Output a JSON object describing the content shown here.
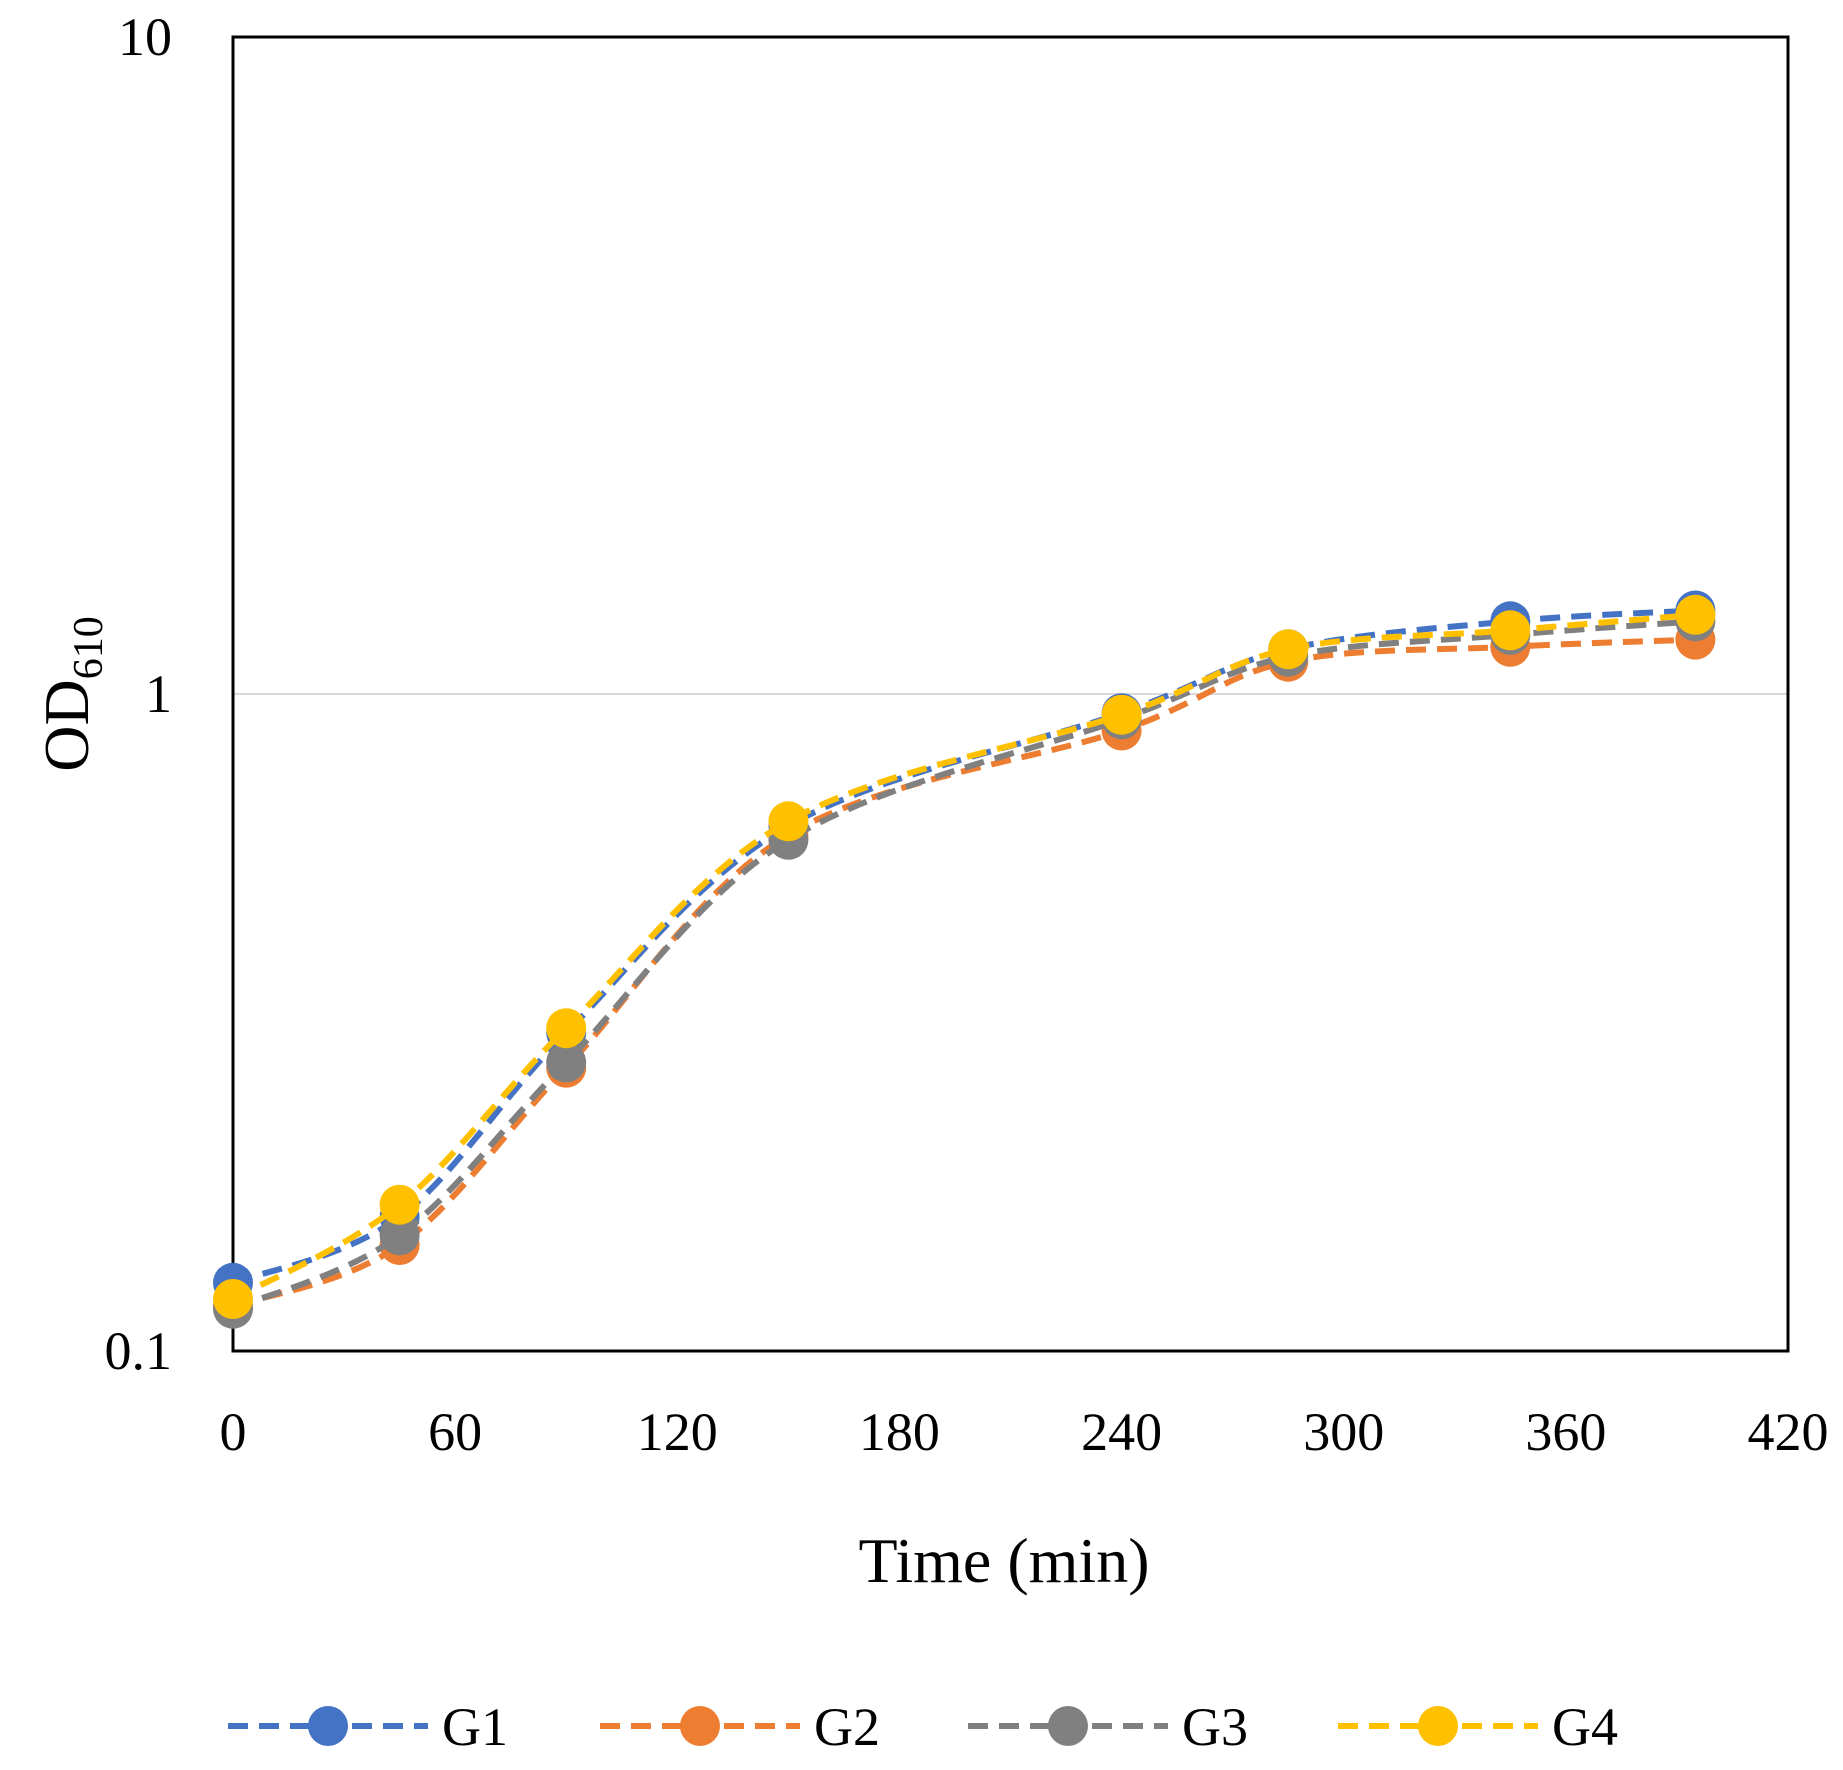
{
  "chart_data": {
    "type": "line",
    "title": "",
    "xlabel": "Time (min)",
    "ylabel": "OD",
    "ylabel_subscript": "610",
    "xlim": [
      0,
      420
    ],
    "ylim": [
      0.1,
      10
    ],
    "yscale": "log",
    "x_ticks": [
      0,
      60,
      120,
      180,
      240,
      300,
      360,
      420
    ],
    "x_tick_labels": [
      "0",
      "60",
      "120",
      "180",
      "240",
      "300",
      "360",
      "420"
    ],
    "y_ticks": [
      0.1,
      1,
      10
    ],
    "y_tick_labels": [
      "0.1",
      "1",
      "10"
    ],
    "grid": "horizontal major at 1",
    "legend_position": "bottom",
    "x": [
      0,
      45,
      90,
      150,
      240,
      285,
      345,
      395
    ],
    "series": [
      {
        "name": "G1",
        "color": "#4472C4",
        "values": [
          0.127,
          0.16,
          0.305,
          0.63,
          0.935,
          1.17,
          1.29,
          1.34
        ]
      },
      {
        "name": "G2",
        "color": "#ED7D31",
        "values": [
          0.117,
          0.145,
          0.27,
          0.61,
          0.88,
          1.12,
          1.18,
          1.21
        ]
      },
      {
        "name": "G3",
        "color": "#808080",
        "values": [
          0.116,
          0.15,
          0.275,
          0.6,
          0.915,
          1.14,
          1.23,
          1.29
        ]
      },
      {
        "name": "G4",
        "color": "#FFC000",
        "values": [
          0.12,
          0.167,
          0.31,
          0.64,
          0.93,
          1.17,
          1.25,
          1.32
        ]
      }
    ]
  }
}
